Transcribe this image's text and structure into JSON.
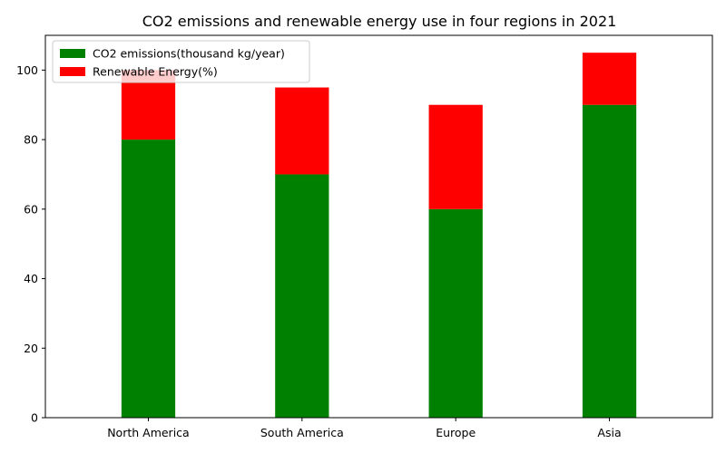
{
  "chart_data": {
    "type": "bar",
    "stacked": true,
    "title": "CO2 emissions and renewable energy use in four regions in 2021",
    "xlabel": "",
    "ylabel": "",
    "categories": [
      "North America",
      "South America",
      "Europe",
      "Asia"
    ],
    "series": [
      {
        "name": "CO2 emissions(thousand kg/year)",
        "values": [
          80,
          70,
          60,
          90
        ],
        "color": "#008000"
      },
      {
        "name": "Renewable Energy(%)",
        "values": [
          20,
          25,
          30,
          15
        ],
        "color": "#ff0000"
      }
    ],
    "ylim": [
      0,
      110
    ],
    "yticks": [
      0,
      20,
      40,
      60,
      80,
      100
    ],
    "grid": false,
    "legend_position": "upper-left"
  }
}
